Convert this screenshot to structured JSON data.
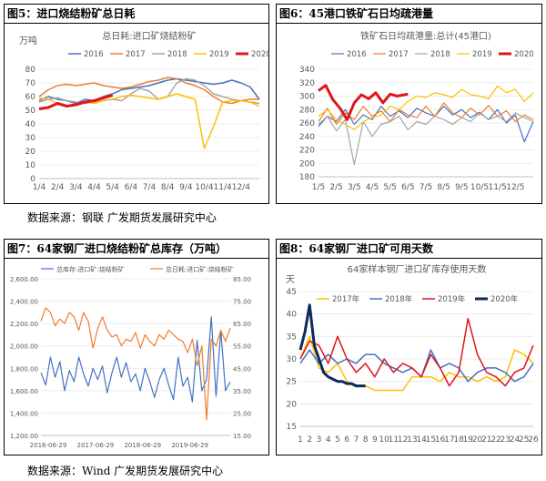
{
  "panels": [
    {
      "title": "图5：进口烧结粉矿总日耗"
    },
    {
      "title": "图6：45港口铁矿石日均疏港量"
    },
    {
      "title": "图7：64家钢厂进口烧结粉矿总库存（万吨）"
    },
    {
      "title": "图8：64家钢厂进口矿可用天数"
    }
  ],
  "sources": [
    "数据来源：钢联 广发期货发展研究中心",
    "数据来源：Wind 广发期货发展研究中心"
  ],
  "chart_data": [
    {
      "type": "line",
      "title": "总日耗:进口矿烧结粉矿",
      "ylabel": "万吨",
      "ylim": [
        0,
        80
      ],
      "yticks": [
        0,
        10,
        20,
        30,
        40,
        50,
        60,
        70,
        80
      ],
      "x_ticks": [
        "1/4",
        "2/4",
        "3/4",
        "4/4",
        "5/4",
        "6/4",
        "7/4",
        "8/4",
        "9/4",
        "10/4",
        "11/4",
        "12/4"
      ],
      "xlim": [
        0,
        12
      ],
      "series": [
        {
          "name": "2016",
          "color": "#4472C4",
          "width": 1.5,
          "x": [
            0,
            0.5,
            1,
            1.5,
            2,
            2.5,
            3,
            3.5,
            4,
            4.5,
            5,
            5.5,
            6,
            6.5,
            7,
            7.5,
            8,
            8.5,
            9,
            9.5,
            10,
            10.5,
            11,
            11.5,
            12
          ],
          "values": [
            57,
            60,
            58,
            57,
            55,
            58,
            57,
            60,
            62,
            65,
            66,
            67,
            68,
            70,
            72,
            73,
            72,
            71,
            70,
            69,
            70,
            72,
            70,
            67,
            58
          ]
        },
        {
          "name": "2017",
          "color": "#ED7D31",
          "width": 1.5,
          "x": [
            0,
            0.5,
            1,
            1.5,
            2,
            2.5,
            3,
            3.5,
            4,
            4.5,
            5,
            5.5,
            6,
            6.5,
            7,
            7.5,
            8,
            8.5,
            9,
            9.5,
            10,
            10.5,
            11,
            11.5,
            12
          ],
          "values": [
            60,
            65,
            68,
            69,
            68,
            69,
            70,
            68,
            67,
            66,
            67,
            69,
            71,
            72,
            74,
            73,
            70,
            68,
            65,
            60,
            56,
            55,
            57,
            58,
            58
          ]
        },
        {
          "name": "2018",
          "color": "#A5A5A5",
          "width": 1.5,
          "x": [
            0,
            0.5,
            1,
            1.5,
            2,
            2.5,
            3,
            3.5,
            4,
            4.5,
            5,
            5.5,
            6,
            6.5,
            7,
            7.5,
            8,
            8.5,
            9,
            9.5,
            10,
            10.5,
            11,
            11.5,
            12
          ],
          "values": [
            56,
            58,
            59,
            57,
            56,
            55,
            56,
            57,
            58,
            57,
            62,
            66,
            64,
            58,
            60,
            70,
            73,
            72,
            68,
            62,
            60,
            58,
            57,
            56,
            55
          ]
        },
        {
          "name": "2019",
          "color": "#FFC000",
          "width": 1.5,
          "x": [
            0,
            0.5,
            1,
            1.5,
            2,
            2.5,
            3,
            3.5,
            4,
            4.5,
            5,
            5.5,
            6,
            6.5,
            7,
            7.5,
            8,
            8.5,
            9,
            9.5,
            10,
            10.5,
            11,
            11.5,
            12
          ],
          "values": [
            59,
            58,
            55,
            53,
            54,
            56,
            55,
            57,
            58,
            60,
            61,
            60,
            59,
            58,
            60,
            62,
            60,
            58,
            22,
            38,
            56,
            57,
            57,
            56,
            53
          ]
        },
        {
          "name": "2020",
          "color": "#E0141A",
          "width": 3,
          "x": [
            0,
            0.5,
            1,
            1.5,
            2,
            2.5,
            3,
            3.5,
            4
          ],
          "values": [
            51,
            52,
            55,
            53,
            54,
            56,
            57,
            59,
            61
          ]
        }
      ]
    },
    {
      "type": "line",
      "title": "铁矿石日均疏港量:总计(45港口)",
      "ylim": [
        180,
        340
      ],
      "yticks": [
        180,
        200,
        220,
        240,
        260,
        280,
        300,
        320,
        340
      ],
      "x_ticks": [
        "1/5",
        "2/5",
        "3/5",
        "4/5",
        "5/5",
        "6/5",
        "7/5",
        "8/5",
        "9/5",
        "10/5",
        "11/5",
        "12/5"
      ],
      "xlim": [
        0,
        12
      ],
      "series": [
        {
          "name": "2016",
          "color": "#4472C4",
          "width": 1.2,
          "x": [
            0,
            0.5,
            1,
            1.5,
            2,
            2.5,
            3,
            3.5,
            4,
            4.5,
            5,
            5.5,
            6,
            6.5,
            7,
            7.5,
            8,
            8.5,
            9,
            9.5,
            10,
            10.5,
            11,
            11.5,
            12
          ],
          "values": [
            255,
            270,
            262,
            280,
            258,
            272,
            265,
            285,
            270,
            278,
            268,
            282,
            275,
            270,
            285,
            272,
            280,
            268,
            276,
            265,
            280,
            260,
            272,
            232,
            262
          ]
        },
        {
          "name": "2017",
          "color": "#ED7D31",
          "width": 1.2,
          "x": [
            0,
            0.5,
            1,
            1.5,
            2,
            2.5,
            3,
            3.5,
            4,
            4.5,
            5,
            5.5,
            6,
            6.5,
            7,
            7.5,
            8,
            8.5,
            9,
            9.5,
            10,
            10.5,
            11,
            11.5,
            12
          ],
          "values": [
            262,
            282,
            258,
            275,
            265,
            285,
            270,
            278,
            262,
            280,
            272,
            268,
            285,
            270,
            290,
            275,
            268,
            282,
            272,
            286,
            270,
            278,
            262,
            272,
            265
          ]
        },
        {
          "name": "2018",
          "color": "#A5A5A5",
          "width": 1.2,
          "x": [
            0,
            0.5,
            1,
            1.5,
            2,
            2.5,
            3,
            3.5,
            4,
            4.5,
            5,
            5.5,
            6,
            6.5,
            7,
            7.5,
            8,
            8.5,
            9,
            9.5,
            10,
            10.5,
            11,
            11.5,
            12
          ],
          "values": [
            258,
            270,
            248,
            265,
            198,
            262,
            240,
            258,
            262,
            270,
            250,
            262,
            258,
            270,
            265,
            258,
            268,
            262,
            275,
            265,
            270,
            262,
            275,
            268,
            262
          ]
        },
        {
          "name": "2019",
          "color": "#FFC000",
          "width": 1.2,
          "x": [
            0,
            0.5,
            1,
            1.5,
            2,
            2.5,
            3,
            3.5,
            4,
            4.5,
            5,
            5.5,
            6,
            6.5,
            7,
            7.5,
            8,
            8.5,
            9,
            9.5,
            10,
            10.5,
            11,
            11.5,
            12
          ],
          "values": [
            270,
            280,
            265,
            258,
            250,
            262,
            268,
            272,
            285,
            280,
            292,
            300,
            298,
            305,
            302,
            298,
            310,
            302,
            300,
            296,
            315,
            305,
            310,
            292,
            305
          ]
        },
        {
          "name": "2020",
          "color": "#E0141A",
          "width": 3,
          "x": [
            0,
            0.4,
            0.8,
            1.2,
            1.6,
            2,
            2.4,
            2.8,
            3.2,
            3.6,
            4,
            4.4,
            4.8,
            5
          ],
          "values": [
            308,
            316,
            295,
            282,
            265,
            290,
            302,
            296,
            305,
            290,
            303,
            300,
            302,
            303
          ]
        }
      ]
    },
    {
      "type": "line",
      "title": "",
      "dual_axis": true,
      "ylim_left": [
        1200,
        2600
      ],
      "yticks_left": [
        "1,200.00",
        "1,400.00",
        "1,600.00",
        "1,800.00",
        "2,000.00",
        "2,200.00",
        "2,400.00",
        "2,600.00"
      ],
      "ylim_right": [
        15,
        85
      ],
      "yticks_right": [
        "15.00",
        "25.00",
        "35.00",
        "45.00",
        "55.00",
        "65.00",
        "75.00",
        "85.00"
      ],
      "x_ticks": [
        "2016-06-29",
        "2017-06-29",
        "2018-06-29",
        "2019-06-29"
      ],
      "xlim": [
        0,
        4.0
      ],
      "series": [
        {
          "name": "总库存:进口矿:烧结粉矿",
          "axis": "left",
          "color": "#4472C4",
          "width": 1.2,
          "x": [
            0,
            0.1,
            0.2,
            0.3,
            0.4,
            0.5,
            0.6,
            0.7,
            0.8,
            0.9,
            1.0,
            1.1,
            1.2,
            1.3,
            1.4,
            1.5,
            1.6,
            1.7,
            1.8,
            1.9,
            2.0,
            2.1,
            2.2,
            2.3,
            2.4,
            2.5,
            2.6,
            2.7,
            2.8,
            2.9,
            3.0,
            3.1,
            3.2,
            3.3,
            3.4,
            3.5,
            3.6,
            3.7,
            3.8,
            3.9,
            4.0
          ],
          "values": [
            1760,
            1650,
            1900,
            1720,
            1860,
            1600,
            1780,
            1680,
            1900,
            1750,
            1640,
            1800,
            1700,
            1820,
            1580,
            1760,
            1900,
            1720,
            1850,
            1680,
            1750,
            1600,
            1800,
            1680,
            1540,
            1700,
            1800,
            1650,
            1520,
            1900,
            1640,
            1720,
            1500,
            2050,
            1600,
            1700,
            2260,
            1550,
            2140,
            1600,
            1680
          ]
        },
        {
          "name": "总日耗:进口矿:烧结粉矿",
          "axis": "right",
          "color": "#ED7D31",
          "width": 1.2,
          "x": [
            0,
            0.1,
            0.2,
            0.3,
            0.4,
            0.5,
            0.6,
            0.7,
            0.8,
            0.9,
            1.0,
            1.1,
            1.2,
            1.3,
            1.4,
            1.5,
            1.6,
            1.7,
            1.8,
            1.9,
            2.0,
            2.1,
            2.2,
            2.3,
            2.4,
            2.5,
            2.6,
            2.7,
            2.8,
            2.9,
            3.0,
            3.1,
            3.2,
            3.3,
            3.4,
            3.5,
            3.6,
            3.7,
            3.8,
            3.9,
            4.0
          ],
          "values": [
            66,
            72,
            70,
            64,
            67,
            65,
            70,
            68,
            62,
            70,
            66,
            54,
            63,
            68,
            62,
            59,
            60,
            55,
            58,
            57,
            61,
            54,
            60,
            57,
            55,
            60,
            58,
            62,
            60,
            58,
            57,
            52,
            58,
            46,
            55,
            22,
            58,
            55,
            62,
            57,
            63
          ]
        }
      ]
    },
    {
      "type": "line",
      "title": "64家样本钢厂进口矿库存使用天数",
      "ylabel": "天",
      "ylim": [
        15,
        45
      ],
      "yticks": [
        15,
        20,
        25,
        30,
        35,
        40,
        45
      ],
      "x_ticks": [
        "1",
        "2",
        "3",
        "4",
        "5",
        "6",
        "7",
        "8",
        "9",
        "10",
        "11",
        "12",
        "13",
        "14",
        "15",
        "16",
        "17",
        "18",
        "19",
        "20",
        "21",
        "22",
        "23",
        "24",
        "25",
        "26"
      ],
      "xlim": [
        1,
        26
      ],
      "series": [
        {
          "name": "2017年",
          "color": "#FFC000",
          "width": 1.5,
          "x": [
            1,
            2,
            3,
            4,
            5,
            6,
            7,
            8,
            9,
            10,
            11,
            12,
            13,
            14,
            15,
            16,
            17,
            18,
            19,
            20,
            21,
            22,
            23,
            24,
            25,
            26
          ],
          "values": [
            30,
            35,
            28,
            27,
            29,
            25,
            24,
            24,
            23,
            23,
            23,
            23,
            26,
            26,
            26,
            25,
            27,
            26,
            26,
            25,
            26,
            25,
            26,
            32,
            31,
            29
          ]
        },
        {
          "name": "2018年",
          "color": "#4472C4",
          "width": 1.5,
          "x": [
            1,
            2,
            3,
            4,
            5,
            6,
            7,
            8,
            9,
            10,
            11,
            12,
            13,
            14,
            15,
            16,
            17,
            18,
            19,
            20,
            21,
            22,
            23,
            24,
            25,
            26
          ],
          "values": [
            29,
            32,
            29,
            31,
            29,
            30,
            29,
            31,
            31,
            29,
            28,
            27,
            28,
            26,
            32,
            28,
            29,
            28,
            25,
            27,
            28,
            28,
            27,
            25,
            26,
            29
          ]
        },
        {
          "name": "2019年",
          "color": "#E0141A",
          "width": 1.5,
          "x": [
            1,
            2,
            3,
            4,
            5,
            6,
            7,
            8,
            9,
            10,
            11,
            12,
            13,
            14,
            15,
            16,
            17,
            18,
            19,
            20,
            21,
            22,
            23,
            24,
            25,
            26
          ],
          "values": [
            30,
            34,
            33,
            29,
            35,
            30,
            27,
            29,
            26,
            30,
            27,
            29,
            28,
            26,
            31,
            28,
            24,
            27,
            39,
            31,
            27,
            26,
            24,
            27,
            28,
            33
          ]
        },
        {
          "name": "2020年",
          "color": "#0B2A5E",
          "width": 3,
          "x": [
            1,
            1.5,
            2,
            2.5,
            3,
            3.5,
            4,
            4.5,
            5,
            5.5,
            6,
            6.5,
            7,
            7.5,
            8
          ],
          "values": [
            32,
            36,
            42,
            33,
            30,
            27,
            26,
            25.5,
            25,
            25,
            24.5,
            24.5,
            24,
            24,
            24
          ]
        }
      ]
    }
  ]
}
